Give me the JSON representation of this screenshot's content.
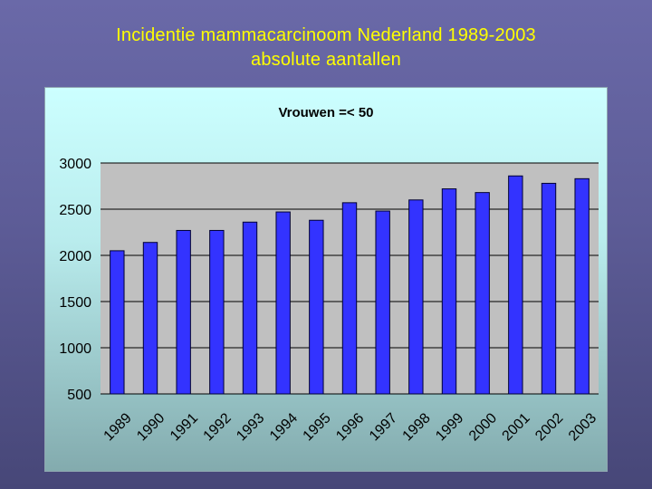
{
  "slide": {
    "title_line1": "Incidentie mammacarcinoom Nederland 1989-2003",
    "title_line2": "absolute aantallen"
  },
  "colors": {
    "title": "#ffff00",
    "bar_fill": "#3333ff",
    "bar_stroke": "#000033",
    "plot_area": "#c0c0c0",
    "gridline": "#000000"
  },
  "chart_data": {
    "type": "bar",
    "title": "Vrouwen =< 50",
    "xlabel": "",
    "ylabel": "",
    "categories": [
      "1989",
      "1990",
      "1991",
      "1992",
      "1993",
      "1994",
      "1995",
      "1996",
      "1997",
      "1998",
      "1999",
      "2000",
      "2001",
      "2002",
      "2003"
    ],
    "values": [
      2050,
      2140,
      2270,
      2270,
      2360,
      2470,
      2380,
      2570,
      2480,
      2600,
      2720,
      2680,
      2860,
      2780,
      2830
    ],
    "ylim": [
      500,
      3000
    ],
    "yticks": [
      "3000",
      "2500",
      "2000",
      "1500",
      "1000",
      "500"
    ],
    "grid": true,
    "legend": "none"
  }
}
